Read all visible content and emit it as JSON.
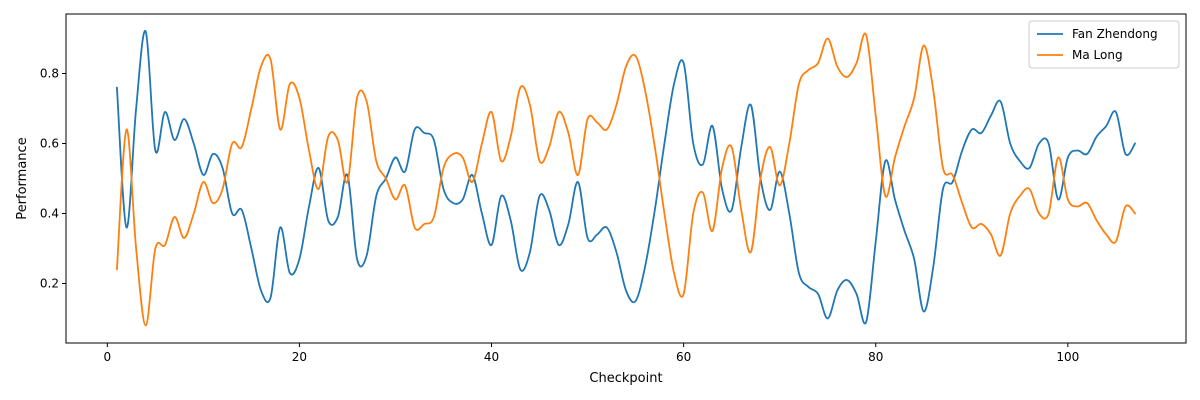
{
  "chart_data": {
    "type": "line",
    "title": "",
    "xlabel": "Checkpoint",
    "ylabel": "Performance",
    "xlim": [
      -4.3,
      112.3
    ],
    "ylim": [
      0.03,
      0.97
    ],
    "xticks": [
      0,
      20,
      40,
      60,
      80,
      100
    ],
    "yticks": [
      0.2,
      0.4,
      0.6,
      0.8
    ],
    "grid": false,
    "legend_position": "top-right",
    "x": [
      1,
      2,
      3,
      4,
      5,
      6,
      7,
      8,
      9,
      10,
      11,
      12,
      13,
      14,
      15,
      16,
      17,
      18,
      19,
      20,
      21,
      22,
      23,
      24,
      25,
      26,
      27,
      28,
      29,
      30,
      31,
      32,
      33,
      34,
      35,
      36,
      37,
      38,
      39,
      40,
      41,
      42,
      43,
      44,
      45,
      46,
      47,
      48,
      49,
      50,
      51,
      52,
      53,
      54,
      55,
      56,
      57,
      58,
      59,
      60,
      61,
      62,
      63,
      64,
      65,
      66,
      67,
      68,
      69,
      70,
      71,
      72,
      73,
      74,
      75,
      76,
      77,
      78,
      79,
      80,
      81,
      82,
      83,
      84,
      85,
      86,
      87,
      88,
      89,
      90,
      91,
      92,
      93,
      94,
      95,
      96,
      97,
      98,
      99,
      100,
      101,
      102,
      103,
      104,
      105,
      106,
      107
    ],
    "series": [
      {
        "name": "Fan Zhendong",
        "color": "#1f77b4",
        "values": [
          0.76,
          0.36,
          0.7,
          0.92,
          0.58,
          0.69,
          0.61,
          0.67,
          0.6,
          0.51,
          0.57,
          0.53,
          0.4,
          0.41,
          0.3,
          0.18,
          0.16,
          0.36,
          0.23,
          0.27,
          0.42,
          0.53,
          0.38,
          0.39,
          0.51,
          0.27,
          0.28,
          0.45,
          0.5,
          0.56,
          0.52,
          0.64,
          0.63,
          0.61,
          0.47,
          0.43,
          0.44,
          0.51,
          0.4,
          0.31,
          0.45,
          0.38,
          0.24,
          0.29,
          0.45,
          0.41,
          0.31,
          0.37,
          0.49,
          0.33,
          0.34,
          0.36,
          0.29,
          0.18,
          0.15,
          0.25,
          0.41,
          0.6,
          0.77,
          0.83,
          0.6,
          0.54,
          0.65,
          0.47,
          0.41,
          0.59,
          0.71,
          0.5,
          0.41,
          0.52,
          0.4,
          0.23,
          0.19,
          0.17,
          0.1,
          0.18,
          0.21,
          0.17,
          0.09,
          0.32,
          0.55,
          0.44,
          0.35,
          0.27,
          0.12,
          0.25,
          0.47,
          0.49,
          0.58,
          0.64,
          0.63,
          0.68,
          0.72,
          0.6,
          0.55,
          0.53,
          0.6,
          0.6,
          0.44,
          0.56,
          0.58,
          0.57,
          0.62,
          0.65,
          0.69,
          0.57,
          0.6
        ]
      },
      {
        "name": "Ma Long",
        "color": "#ff7f0e",
        "values": [
          0.24,
          0.64,
          0.3,
          0.08,
          0.3,
          0.31,
          0.39,
          0.33,
          0.4,
          0.49,
          0.43,
          0.47,
          0.6,
          0.59,
          0.7,
          0.82,
          0.84,
          0.64,
          0.77,
          0.73,
          0.58,
          0.47,
          0.62,
          0.61,
          0.49,
          0.73,
          0.72,
          0.55,
          0.5,
          0.44,
          0.48,
          0.36,
          0.37,
          0.39,
          0.53,
          0.57,
          0.56,
          0.49,
          0.6,
          0.69,
          0.55,
          0.62,
          0.76,
          0.71,
          0.55,
          0.59,
          0.69,
          0.63,
          0.51,
          0.67,
          0.66,
          0.64,
          0.71,
          0.82,
          0.85,
          0.75,
          0.59,
          0.4,
          0.23,
          0.17,
          0.4,
          0.46,
          0.35,
          0.53,
          0.59,
          0.41,
          0.29,
          0.5,
          0.59,
          0.48,
          0.6,
          0.77,
          0.81,
          0.83,
          0.9,
          0.82,
          0.79,
          0.83,
          0.91,
          0.68,
          0.45,
          0.56,
          0.65,
          0.73,
          0.88,
          0.75,
          0.53,
          0.51,
          0.43,
          0.36,
          0.37,
          0.34,
          0.28,
          0.4,
          0.45,
          0.47,
          0.4,
          0.4,
          0.56,
          0.44,
          0.42,
          0.43,
          0.38,
          0.34,
          0.32,
          0.42,
          0.4
        ]
      }
    ]
  }
}
